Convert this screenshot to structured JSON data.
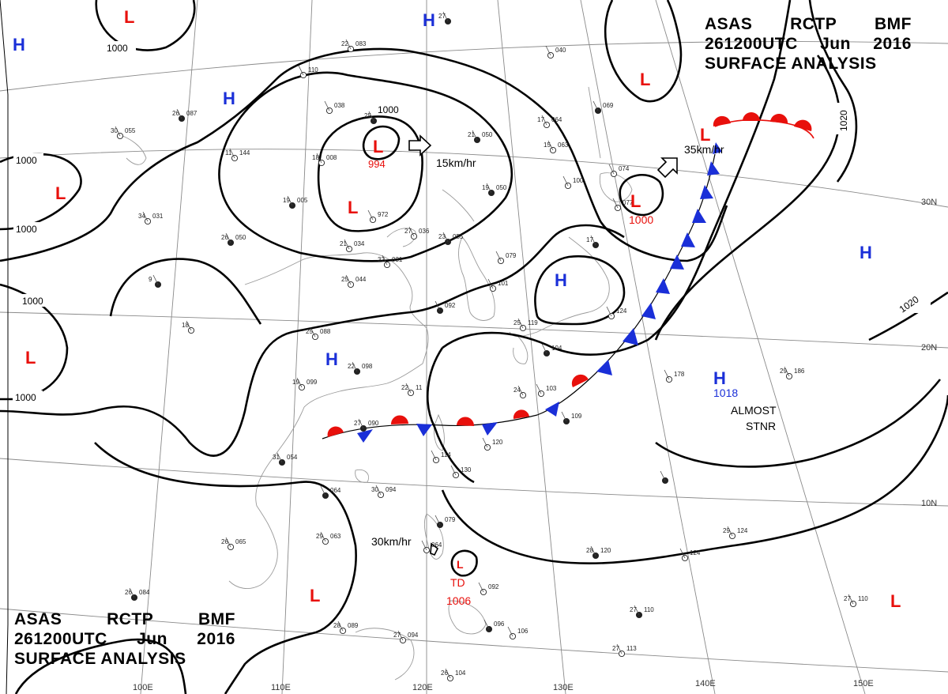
{
  "header_top": {
    "agency": "ASAS",
    "station": "RCTP",
    "office": "BMF",
    "time": "261200UTC",
    "month": "Jun",
    "year": "2016",
    "product": "SURFACE ANALYSIS"
  },
  "header_bottom": {
    "agency": "ASAS",
    "station": "RCTP",
    "office": "BMF",
    "time": "261200UTC",
    "month": "Jun",
    "year": "2016",
    "product": "SURFACE ANALYSIS"
  },
  "colors": {
    "low": "#e8100c",
    "high": "#1a2fd8",
    "isobar": "#000000",
    "grid": "#888888",
    "coast": "#999999",
    "warm_front": "#e8100c",
    "cold_front": "#1a2fd8"
  },
  "pressure_centers": [
    {
      "type": "L",
      "value": "994"
    },
    {
      "type": "L",
      "value": "1000"
    },
    {
      "type": "L",
      "value": "1006"
    },
    {
      "type": "TD",
      "value": "TD"
    },
    {
      "type": "H",
      "value": "1018"
    },
    {
      "type": "L",
      "value": ""
    },
    {
      "type": "L",
      "value": ""
    },
    {
      "type": "L",
      "value": ""
    },
    {
      "type": "L",
      "value": ""
    },
    {
      "type": "L",
      "value": ""
    },
    {
      "type": "L",
      "value": ""
    },
    {
      "type": "L",
      "value": ""
    },
    {
      "type": "H",
      "value": ""
    },
    {
      "type": "H",
      "value": ""
    },
    {
      "type": "H",
      "value": ""
    },
    {
      "type": "H",
      "value": ""
    },
    {
      "type": "H",
      "value": ""
    },
    {
      "type": "H",
      "value": ""
    }
  ],
  "motion_vectors": [
    "15km/hr",
    "35km/hr",
    "30km/hr"
  ],
  "annotations": [
    "ALMOST",
    "STNR"
  ],
  "isobar_labels": [
    "1000",
    "1000",
    "1000",
    "1000",
    "1000",
    "1000",
    "1020",
    "1020"
  ],
  "latitude_labels": [
    "30N",
    "20N",
    "10N"
  ],
  "longitude_labels": [
    "100E",
    "110E",
    "120E",
    "130E",
    "140E",
    "150E"
  ],
  "station_plots": [
    {
      "t": "27",
      "p": ""
    },
    {
      "t": "22",
      "p": "083"
    },
    {
      "t": "",
      "p": "110"
    },
    {
      "t": "26",
      "p": "087"
    },
    {
      "t": "30",
      "p": "055"
    },
    {
      "t": "11",
      "p": "144"
    },
    {
      "t": "25",
      "p": ""
    },
    {
      "t": "",
      "p": "038"
    },
    {
      "t": "18",
      "p": "008"
    },
    {
      "t": "19",
      "p": "005"
    },
    {
      "t": "",
      "p": "972"
    },
    {
      "t": "21",
      "p": "034"
    },
    {
      "t": "26",
      "p": "050"
    },
    {
      "t": "34",
      "p": "031"
    },
    {
      "t": "27",
      "p": "036"
    },
    {
      "t": "23",
      "p": "055"
    },
    {
      "t": "32",
      "p": "031"
    },
    {
      "t": "25",
      "p": "044"
    },
    {
      "t": "9",
      "p": ""
    },
    {
      "t": "18",
      "p": ""
    },
    {
      "t": "25",
      "p": "088"
    },
    {
      "t": "22",
      "p": "098"
    },
    {
      "t": "19",
      "p": "099"
    },
    {
      "t": "22",
      "p": "11"
    },
    {
      "t": "21",
      "p": "050"
    },
    {
      "t": "15",
      "p": "063"
    },
    {
      "t": "17",
      "p": "064"
    },
    {
      "t": "",
      "p": "069"
    },
    {
      "t": "",
      "p": "040"
    },
    {
      "t": "",
      "p": "100"
    },
    {
      "t": "19",
      "p": "050"
    },
    {
      "t": "",
      "p": "079"
    },
    {
      "t": "",
      "p": "101"
    },
    {
      "t": "",
      "p": "092"
    },
    {
      "t": "",
      "p": "074"
    },
    {
      "t": "",
      "p": "077"
    },
    {
      "t": "17",
      "p": ""
    },
    {
      "t": "",
      "p": "124"
    },
    {
      "t": "25",
      "p": "119"
    },
    {
      "t": "",
      "p": "104"
    },
    {
      "t": "24",
      "p": ""
    },
    {
      "t": "",
      "p": "103"
    },
    {
      "t": "",
      "p": "109"
    },
    {
      "t": "29",
      "p": "186"
    },
    {
      "t": "",
      "p": "178"
    },
    {
      "t": "27",
      "p": "090"
    },
    {
      "t": "",
      "p": "120"
    },
    {
      "t": "",
      "p": "114"
    },
    {
      "t": "31",
      "p": "054"
    },
    {
      "t": "",
      "p": "130"
    },
    {
      "t": "30",
      "p": "094"
    },
    {
      "t": "",
      "p": "064"
    },
    {
      "t": "26",
      "p": "065"
    },
    {
      "t": "29",
      "p": "063"
    },
    {
      "t": "",
      "p": "079"
    },
    {
      "t": "",
      "p": "064"
    },
    {
      "t": "",
      "p": "092"
    },
    {
      "t": "28",
      "p": "120"
    },
    {
      "t": "",
      "p": "124"
    },
    {
      "t": "29",
      "p": "124"
    },
    {
      "t": "26",
      "p": "084"
    },
    {
      "t": "28",
      "p": "089"
    },
    {
      "t": "27",
      "p": "094"
    },
    {
      "t": "",
      "p": "096"
    },
    {
      "t": "",
      "p": "106"
    },
    {
      "t": "27",
      "p": "110"
    },
    {
      "t": "27",
      "p": "110"
    },
    {
      "t": "27",
      "p": "113"
    },
    {
      "t": "26",
      "p": "104"
    },
    {
      "t": "",
      "p": ""
    }
  ]
}
